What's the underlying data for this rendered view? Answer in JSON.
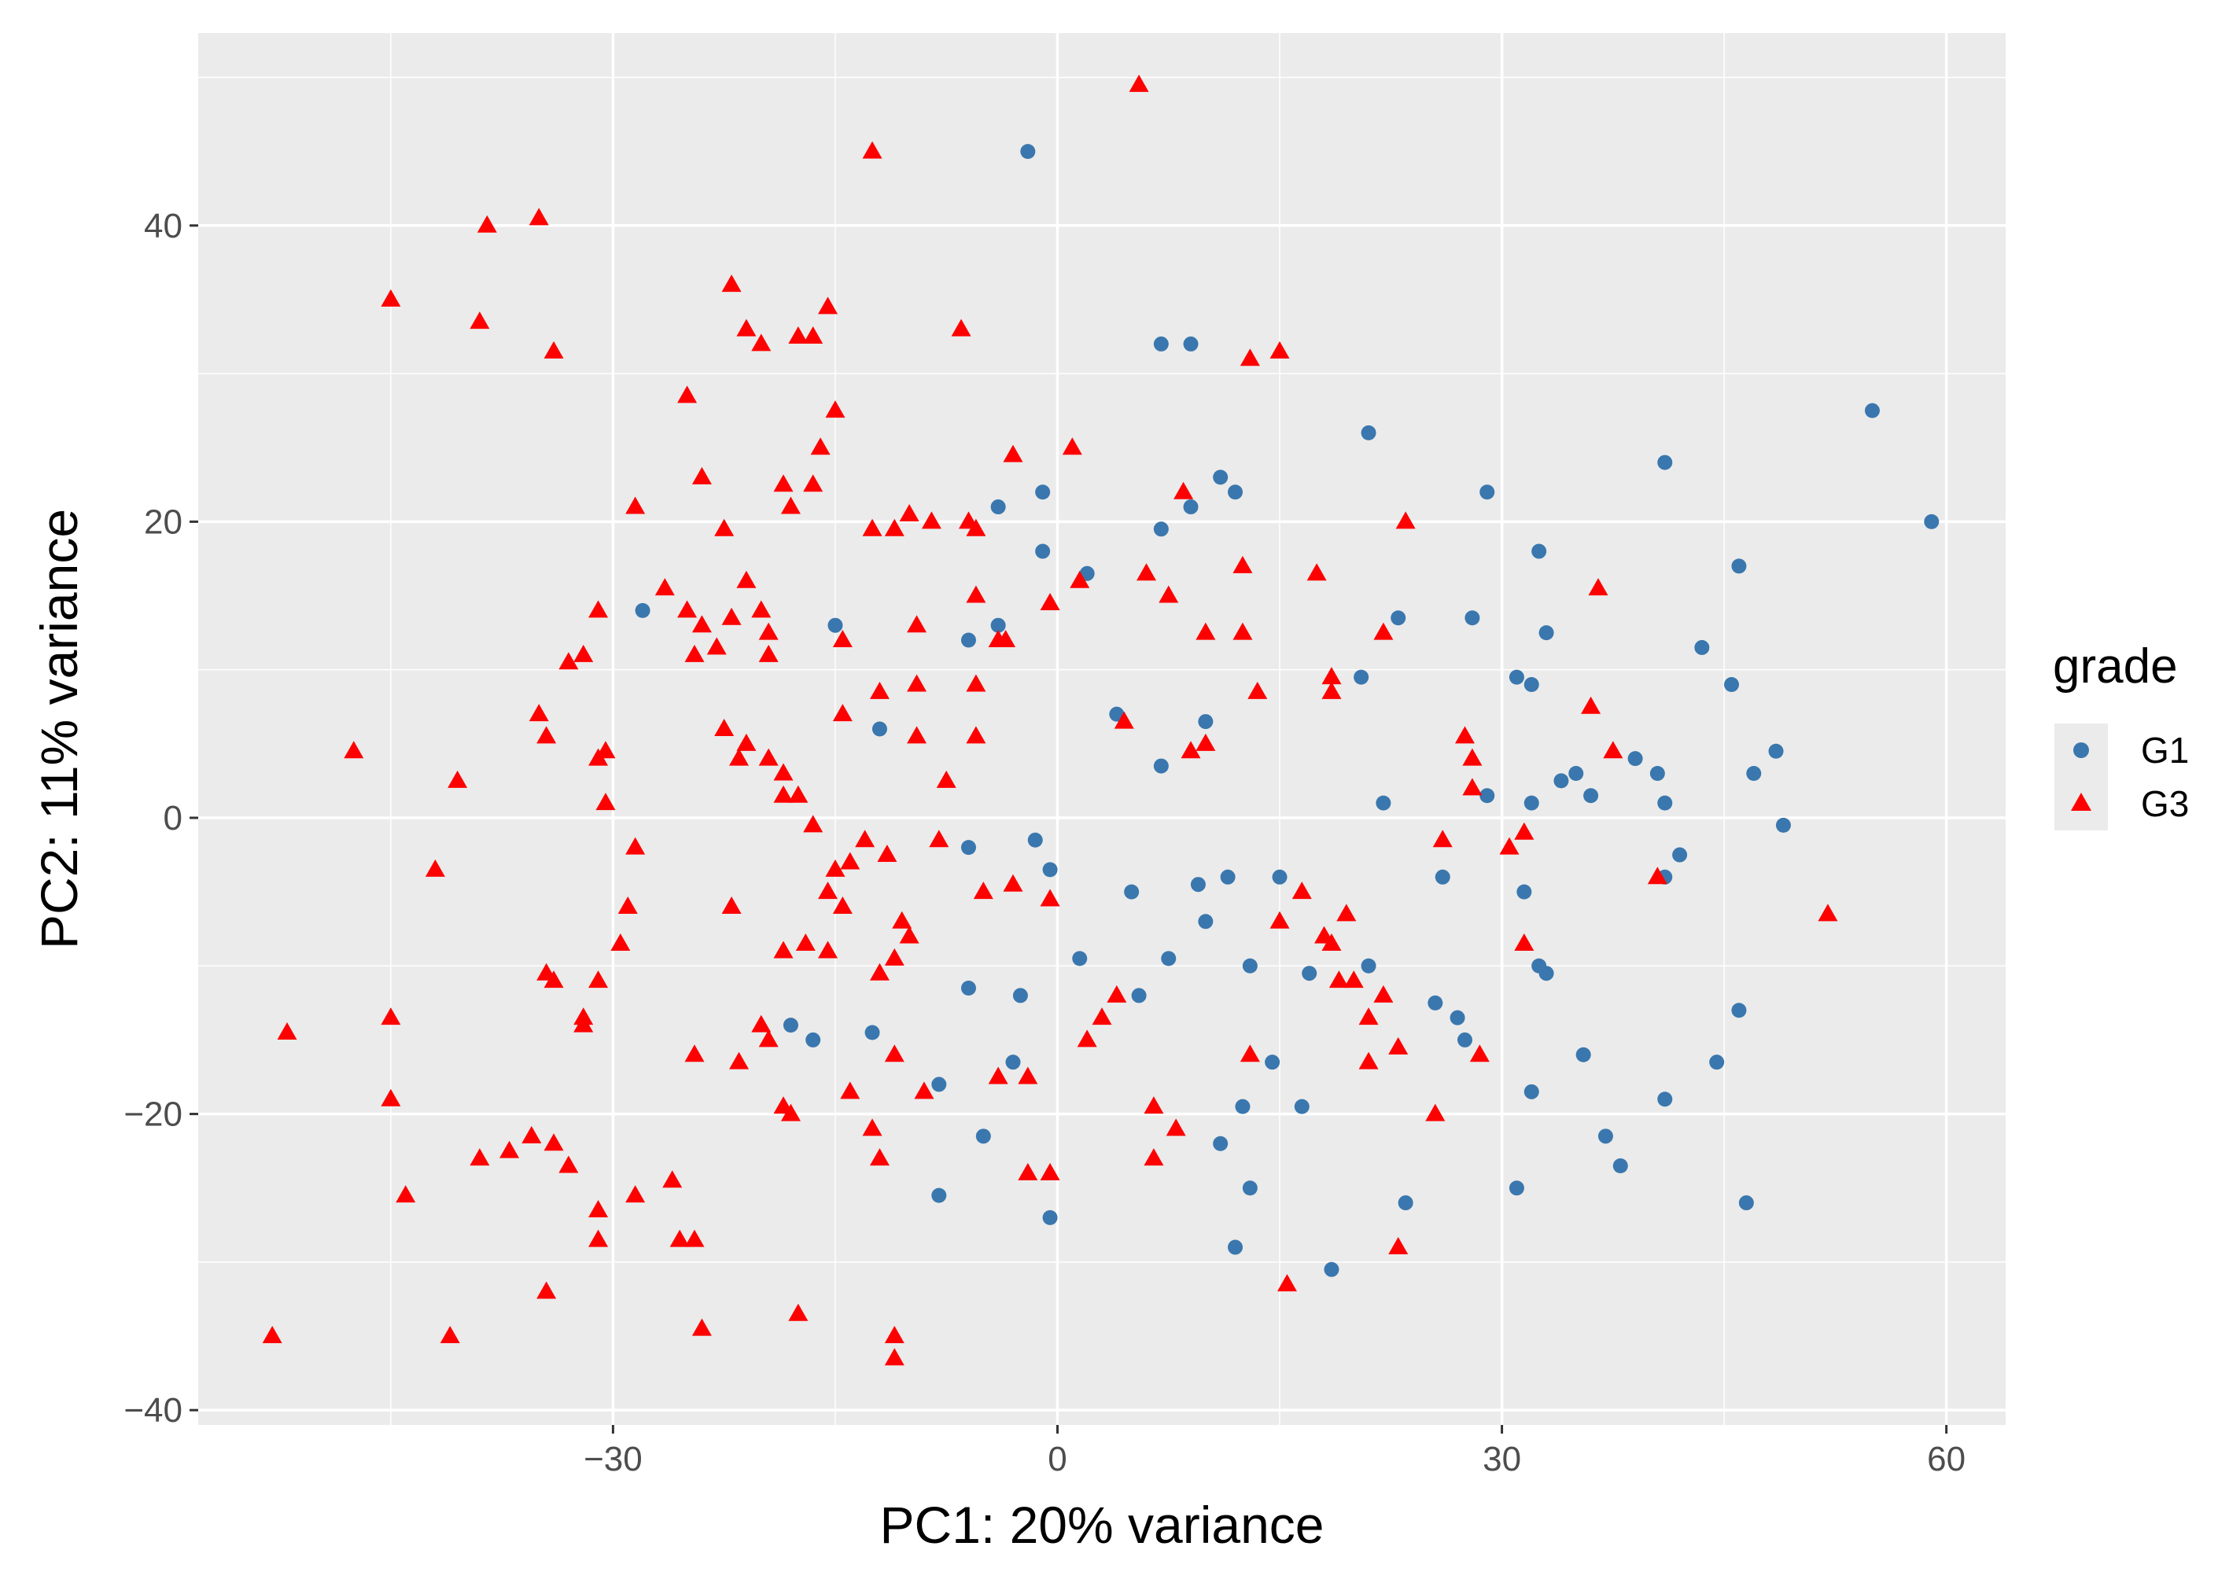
{
  "chart_data": {
    "type": "scatter",
    "title": "",
    "xlabel": "PC1: 20% variance",
    "ylabel": "PC2: 11% variance",
    "xlim": [
      -58,
      64
    ],
    "ylim": [
      -41,
      53
    ],
    "x_ticks": [
      -30,
      0,
      30,
      60
    ],
    "y_ticks": [
      -40,
      -20,
      0,
      20,
      40
    ],
    "x_tick_labels": [
      "−30",
      "0",
      "30",
      "60"
    ],
    "y_tick_labels": [
      "−40",
      "−20",
      "0",
      "20",
      "40"
    ],
    "grid": true,
    "legend": {
      "title": "grade",
      "position": "right",
      "entries": [
        {
          "name": "G1",
          "shape": "circle",
          "color": "#3a77ae"
        },
        {
          "name": "G3",
          "shape": "triangle",
          "color": "#ff0000"
        }
      ]
    },
    "colors": {
      "panel": "#ebebeb",
      "grid": "#ffffff",
      "G1": "#3a77ae",
      "G3": "#ff0000"
    },
    "series": [
      {
        "name": "G1",
        "shape": "circle",
        "points": [
          [
            -2,
            45
          ],
          [
            7,
            32
          ],
          [
            9,
            32
          ],
          [
            -28,
            14
          ],
          [
            -15,
            13
          ],
          [
            -6,
            12
          ],
          [
            -4,
            21
          ],
          [
            -1,
            22
          ],
          [
            -1,
            18
          ],
          [
            2,
            16.5
          ],
          [
            -4,
            13
          ],
          [
            7,
            19.5
          ],
          [
            9,
            21
          ],
          [
            11,
            23
          ],
          [
            12,
            22
          ],
          [
            21,
            26
          ],
          [
            29,
            22
          ],
          [
            41,
            24
          ],
          [
            55,
            27.5
          ],
          [
            59,
            20
          ],
          [
            32.5,
            18
          ],
          [
            28,
            13.5
          ],
          [
            33,
            12.5
          ],
          [
            46,
            17
          ],
          [
            43.5,
            11.5
          ],
          [
            23,
            13.5
          ],
          [
            20.5,
            9.5
          ],
          [
            31,
            9.5
          ],
          [
            32,
            9
          ],
          [
            45.5,
            9
          ],
          [
            48.5,
            4.5
          ],
          [
            47,
            3
          ],
          [
            39,
            4
          ],
          [
            40.5,
            3
          ],
          [
            35,
            3
          ],
          [
            34,
            2.5
          ],
          [
            36,
            1.5
          ],
          [
            29,
            1.5
          ],
          [
            22,
            1
          ],
          [
            32,
            1
          ],
          [
            41,
            1
          ],
          [
            49,
            -0.5
          ],
          [
            42,
            -2.5
          ],
          [
            41,
            -4
          ],
          [
            31.5,
            -5
          ],
          [
            26,
            -4
          ],
          [
            4,
            7
          ],
          [
            7,
            3.5
          ],
          [
            10,
            6.5
          ],
          [
            -12,
            6
          ],
          [
            -6,
            -2
          ],
          [
            -1.5,
            -1.5
          ],
          [
            -0.5,
            -3.5
          ],
          [
            5,
            -5
          ],
          [
            9.5,
            -4.5
          ],
          [
            11.5,
            -4
          ],
          [
            10,
            -7
          ],
          [
            15,
            -4
          ],
          [
            1.5,
            -9.5
          ],
          [
            7.5,
            -9.5
          ],
          [
            13,
            -10
          ],
          [
            17,
            -10.5
          ],
          [
            21,
            -10
          ],
          [
            25.5,
            -12.5
          ],
          [
            27,
            -13.5
          ],
          [
            27.5,
            -15
          ],
          [
            33,
            -10.5
          ],
          [
            32.5,
            -10
          ],
          [
            46,
            -13
          ],
          [
            -6,
            -11.5
          ],
          [
            -2.5,
            -12
          ],
          [
            5.5,
            -12
          ],
          [
            -18,
            -14
          ],
          [
            -16.5,
            -15
          ],
          [
            -12.5,
            -14.5
          ],
          [
            -3,
            -16.5
          ],
          [
            -8,
            -18
          ],
          [
            14.5,
            -16.5
          ],
          [
            35.5,
            -16
          ],
          [
            44.5,
            -16.5
          ],
          [
            32,
            -18.5
          ],
          [
            41,
            -19
          ],
          [
            12.5,
            -19.5
          ],
          [
            16.5,
            -19.5
          ],
          [
            -5,
            -21.5
          ],
          [
            11,
            -22
          ],
          [
            37,
            -21.5
          ],
          [
            38,
            -23.5
          ],
          [
            -8,
            -25.5
          ],
          [
            13,
            -25
          ],
          [
            31,
            -25
          ],
          [
            23.5,
            -26
          ],
          [
            46.5,
            -26
          ],
          [
            -0.5,
            -27
          ],
          [
            12,
            -29
          ],
          [
            18.5,
            -30.5
          ]
        ]
      },
      {
        "name": "G3",
        "shape": "triangle",
        "points": [
          [
            5.5,
            49.5
          ],
          [
            -12.5,
            45
          ],
          [
            -35,
            40.5
          ],
          [
            -38.5,
            40
          ],
          [
            -45,
            35
          ],
          [
            -39,
            33.5
          ],
          [
            -34,
            31.5
          ],
          [
            -22,
            36
          ],
          [
            -15.5,
            34.5
          ],
          [
            -21,
            33
          ],
          [
            -17.5,
            32.5
          ],
          [
            -16.5,
            32.5
          ],
          [
            -20,
            32
          ],
          [
            -6.5,
            33
          ],
          [
            13,
            31
          ],
          [
            15,
            31.5
          ],
          [
            -25,
            28.5
          ],
          [
            -15,
            27.5
          ],
          [
            -16,
            25
          ],
          [
            -3,
            24.5
          ],
          [
            1,
            25
          ],
          [
            -24,
            23
          ],
          [
            -18.5,
            22.5
          ],
          [
            -16.5,
            22.5
          ],
          [
            -18,
            21
          ],
          [
            -28.5,
            21
          ],
          [
            -22.5,
            19.5
          ],
          [
            -12.5,
            19.5
          ],
          [
            -11,
            19.5
          ],
          [
            -10,
            20.5
          ],
          [
            -8.5,
            20
          ],
          [
            -5.5,
            19.5
          ],
          [
            -6,
            20
          ],
          [
            8.5,
            22
          ],
          [
            23.5,
            20
          ],
          [
            -26.5,
            15.5
          ],
          [
            -21,
            16
          ],
          [
            -20,
            14
          ],
          [
            -25,
            14
          ],
          [
            -22,
            13.5
          ],
          [
            -24,
            13
          ],
          [
            -19.5,
            12.5
          ],
          [
            -14.5,
            12
          ],
          [
            -9.5,
            13
          ],
          [
            -5.5,
            15
          ],
          [
            -0.5,
            14.5
          ],
          [
            1.5,
            16
          ],
          [
            6,
            16.5
          ],
          [
            7.5,
            15
          ],
          [
            12.5,
            17
          ],
          [
            17.5,
            16.5
          ],
          [
            36.5,
            15.5
          ],
          [
            -31,
            14
          ],
          [
            -32,
            11
          ],
          [
            -33,
            10.5
          ],
          [
            -23,
            11.5
          ],
          [
            -24.5,
            11
          ],
          [
            -19.5,
            11
          ],
          [
            -4,
            12
          ],
          [
            -3.5,
            12
          ],
          [
            10,
            12.5
          ],
          [
            12.5,
            12.5
          ],
          [
            22,
            12.5
          ],
          [
            -12,
            8.5
          ],
          [
            -9.5,
            9
          ],
          [
            -5.5,
            9
          ],
          [
            18.5,
            9.5
          ],
          [
            13.5,
            8.5
          ],
          [
            18.5,
            8.5
          ],
          [
            36,
            7.5
          ],
          [
            -35,
            7
          ],
          [
            -14.5,
            7
          ],
          [
            -5.5,
            5.5
          ],
          [
            -9.5,
            5.5
          ],
          [
            4.5,
            6.5
          ],
          [
            9,
            4.5
          ],
          [
            10,
            5
          ],
          [
            -34.5,
            5.5
          ],
          [
            -22.5,
            6
          ],
          [
            -21,
            5
          ],
          [
            -21.5,
            4
          ],
          [
            -19.5,
            4
          ],
          [
            -18.5,
            3
          ],
          [
            -31,
            4
          ],
          [
            -30.5,
            4.5
          ],
          [
            -47.5,
            4.5
          ],
          [
            -40.5,
            2.5
          ],
          [
            -30.5,
            1
          ],
          [
            -18.5,
            1.5
          ],
          [
            -17.5,
            1.5
          ],
          [
            -7.5,
            2.5
          ],
          [
            27.5,
            5.5
          ],
          [
            28,
            4
          ],
          [
            37.5,
            4.5
          ],
          [
            28,
            2
          ],
          [
            -16.5,
            -0.5
          ],
          [
            -13,
            -1.5
          ],
          [
            -8,
            -1.5
          ],
          [
            -28.5,
            -2
          ],
          [
            -11.5,
            -2.5
          ],
          [
            -14,
            -3
          ],
          [
            -15,
            -3.5
          ],
          [
            26,
            -1.5
          ],
          [
            31.5,
            -1
          ],
          [
            30.5,
            -2
          ],
          [
            -42,
            -3.5
          ],
          [
            -15.5,
            -5
          ],
          [
            -5,
            -5
          ],
          [
            -3,
            -4.5
          ],
          [
            -14.5,
            -6
          ],
          [
            -22,
            -6
          ],
          [
            -29,
            -6
          ],
          [
            -10.5,
            -7
          ],
          [
            -10,
            -8
          ],
          [
            -0.5,
            -5.5
          ],
          [
            16.5,
            -5
          ],
          [
            18,
            -8
          ],
          [
            19.5,
            -6.5
          ],
          [
            -29.5,
            -8.5
          ],
          [
            -18.5,
            -9
          ],
          [
            -17,
            -8.5
          ],
          [
            -15.5,
            -9
          ],
          [
            -11,
            -9.5
          ],
          [
            -12,
            -10.5
          ],
          [
            -31,
            -11
          ],
          [
            -34.5,
            -10.5
          ],
          [
            -34,
            -11
          ],
          [
            -32,
            -13.5
          ],
          [
            -32,
            -14
          ],
          [
            19,
            -11
          ],
          [
            20,
            -11
          ],
          [
            15,
            -7
          ],
          [
            18.5,
            -8.5
          ],
          [
            4,
            -12
          ],
          [
            21,
            -13.5
          ],
          [
            22,
            -12
          ],
          [
            31.5,
            -8.5
          ],
          [
            52,
            -6.5
          ],
          [
            -45,
            -13.5
          ],
          [
            -52,
            -14.5
          ],
          [
            -24.5,
            -16
          ],
          [
            -21.5,
            -16.5
          ],
          [
            -20,
            -14
          ],
          [
            -19.5,
            -15
          ],
          [
            -11,
            -16
          ],
          [
            -4,
            -17.5
          ],
          [
            -2,
            -17.5
          ],
          [
            2,
            -15
          ],
          [
            3,
            -13.5
          ],
          [
            13,
            -16
          ],
          [
            21,
            -16.5
          ],
          [
            23,
            -15.5
          ],
          [
            28.5,
            -16
          ],
          [
            40.5,
            -4
          ],
          [
            -45,
            -19
          ],
          [
            -37,
            -22.5
          ],
          [
            -35.5,
            -21.5
          ],
          [
            -34,
            -22
          ],
          [
            -39,
            -23
          ],
          [
            -33,
            -23.5
          ],
          [
            -18.5,
            -19.5
          ],
          [
            -18,
            -20
          ],
          [
            -9,
            -18.5
          ],
          [
            -14,
            -18.5
          ],
          [
            -12.5,
            -21
          ],
          [
            -12,
            -23
          ],
          [
            6.5,
            -19.5
          ],
          [
            8,
            -21
          ],
          [
            6.5,
            -23
          ],
          [
            -2,
            -24
          ],
          [
            -0.5,
            -24
          ],
          [
            25.5,
            -20
          ],
          [
            -44,
            -25.5
          ],
          [
            -26,
            -24.5
          ],
          [
            -31,
            -26.5
          ],
          [
            -28.5,
            -25.5
          ],
          [
            -25.5,
            -28.5
          ],
          [
            -24.5,
            -28.5
          ],
          [
            -31,
            -28.5
          ],
          [
            -34.5,
            -32
          ],
          [
            23,
            -29
          ],
          [
            15.5,
            -31.5
          ],
          [
            -53,
            -35
          ],
          [
            -41,
            -35
          ],
          [
            -24,
            -34.5
          ],
          [
            -17.5,
            -33.5
          ],
          [
            -11,
            -35
          ],
          [
            -11,
            -36.5
          ]
        ]
      }
    ]
  }
}
